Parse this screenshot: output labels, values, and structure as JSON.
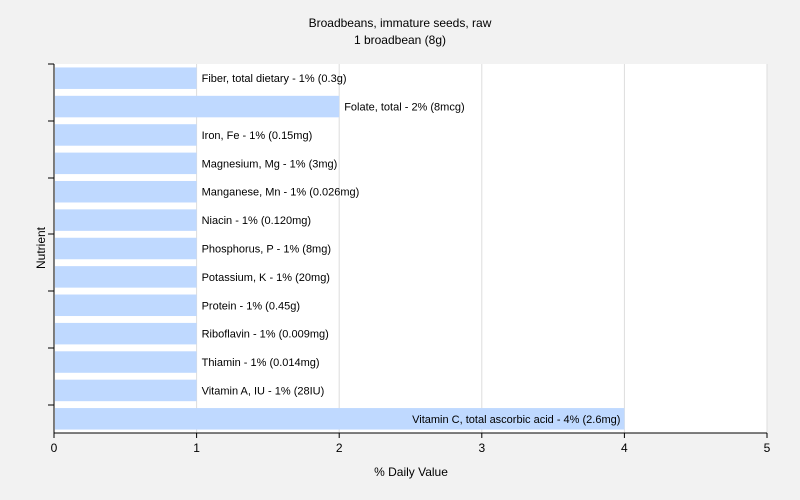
{
  "chart_data": {
    "type": "bar",
    "orientation": "horizontal",
    "title": "Broadbeans, immature seeds, raw",
    "subtitle": "1 broadbean (8g)",
    "xlabel": "% Daily Value",
    "ylabel": "Nutrient",
    "xlim": [
      0,
      5
    ],
    "xticks": [
      "0",
      "1",
      "2",
      "3",
      "4",
      "5"
    ],
    "grid": true,
    "colors": {
      "bar": "#bfd9ff",
      "background": "#f2f2f2",
      "plot": "#ffffff",
      "grid": "#dddddd"
    },
    "bars": [
      {
        "label": "Fiber, total dietary - 1% (0.3g)",
        "value": 1
      },
      {
        "label": "Folate, total - 2% (8mcg)",
        "value": 2
      },
      {
        "label": "Iron, Fe - 1% (0.15mg)",
        "value": 1
      },
      {
        "label": "Magnesium, Mg - 1% (3mg)",
        "value": 1
      },
      {
        "label": "Manganese, Mn - 1% (0.026mg)",
        "value": 1
      },
      {
        "label": "Niacin - 1% (0.120mg)",
        "value": 1
      },
      {
        "label": "Phosphorus, P - 1% (8mg)",
        "value": 1
      },
      {
        "label": "Potassium, K - 1% (20mg)",
        "value": 1
      },
      {
        "label": "Protein - 1% (0.45g)",
        "value": 1
      },
      {
        "label": "Riboflavin - 1% (0.009mg)",
        "value": 1
      },
      {
        "label": "Thiamin - 1% (0.014mg)",
        "value": 1
      },
      {
        "label": "Vitamin A, IU - 1% (28IU)",
        "value": 1
      },
      {
        "label": "Vitamin C, total ascorbic acid - 4% (2.6mg)",
        "value": 4
      }
    ]
  }
}
